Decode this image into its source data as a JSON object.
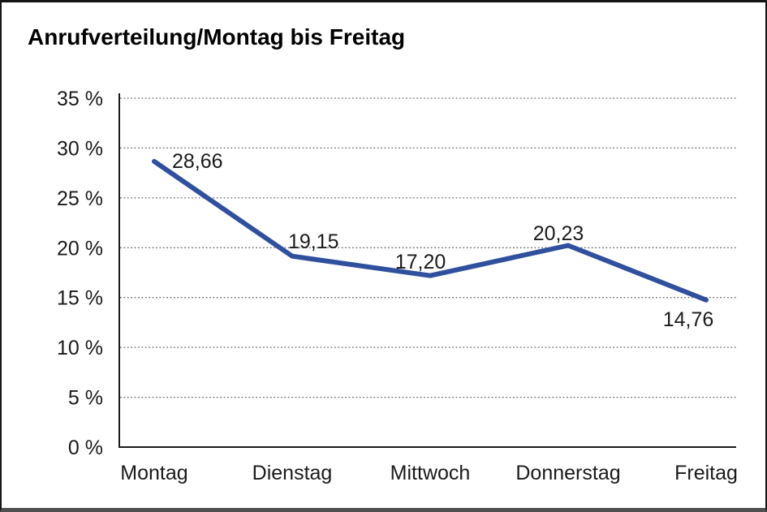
{
  "chart_data": {
    "type": "line",
    "title": "Anrufverteilung/Montag bis Freitag",
    "categories": [
      "Montag",
      "Dienstag",
      "Mittwoch",
      "Donnerstag",
      "Freitag"
    ],
    "series": [
      {
        "name": "Anrufverteilung",
        "values": [
          28.66,
          19.15,
          17.2,
          20.23,
          14.76
        ]
      }
    ],
    "data_labels": [
      "28,66",
      "19,15",
      "17,20",
      "20,23",
      "14,76"
    ],
    "xlabel": "",
    "ylabel": "",
    "ylim": [
      0,
      35
    ],
    "y_ticks": [
      0,
      5,
      10,
      15,
      20,
      25,
      30,
      35
    ],
    "y_tick_labels": [
      "0 %",
      "5 %",
      "10 %",
      "15 %",
      "20 %",
      "25 %",
      "30 %",
      "35 %"
    ],
    "unit": "%",
    "decimal_separator": ",",
    "grid": "horizontal-dotted",
    "legend_position": "none",
    "marker": "none"
  },
  "colors": {
    "line": "#30509E",
    "grid": "#6F6F6F",
    "axis": "#1A1A1A",
    "text": "#1A1A1A",
    "title": "#000000",
    "background": "#FFFFFF",
    "frame_border": "#151515"
  }
}
